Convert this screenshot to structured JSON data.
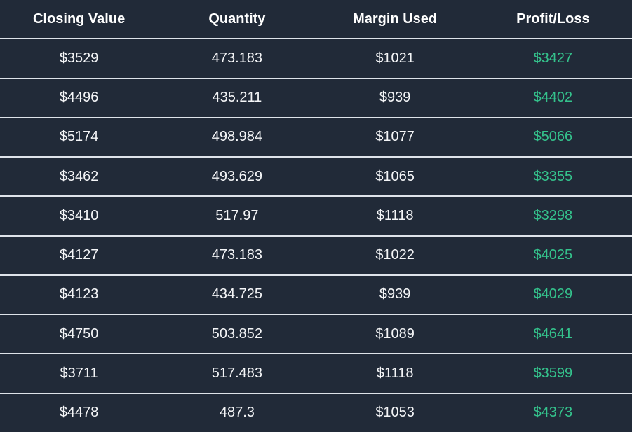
{
  "table": {
    "columns": [
      "Closing Value",
      "Quantity",
      "Margin Used",
      "Profit/Loss"
    ],
    "rows": [
      [
        "$3529",
        "473.183",
        "$1021",
        "$3427"
      ],
      [
        "$4496",
        "435.211",
        "$939",
        "$4402"
      ],
      [
        "$5174",
        "498.984",
        "$1077",
        "$5066"
      ],
      [
        "$3462",
        "493.629",
        "$1065",
        "$3355"
      ],
      [
        "$3410",
        "517.97",
        "$1118",
        "$3298"
      ],
      [
        "$4127",
        "473.183",
        "$1022",
        "$4025"
      ],
      [
        "$4123",
        "434.725",
        "$939",
        "$4029"
      ],
      [
        "$4750",
        "503.852",
        "$1089",
        "$4641"
      ],
      [
        "$3711",
        "517.483",
        "$1118",
        "$3599"
      ],
      [
        "$4478",
        "487.3",
        "$1053",
        "$4373"
      ]
    ]
  },
  "colors": {
    "background": "#212a38",
    "divider": "#dee3e9",
    "text": "#f4f5f7",
    "header_text": "#ffffff",
    "profit": "#34c28c"
  }
}
